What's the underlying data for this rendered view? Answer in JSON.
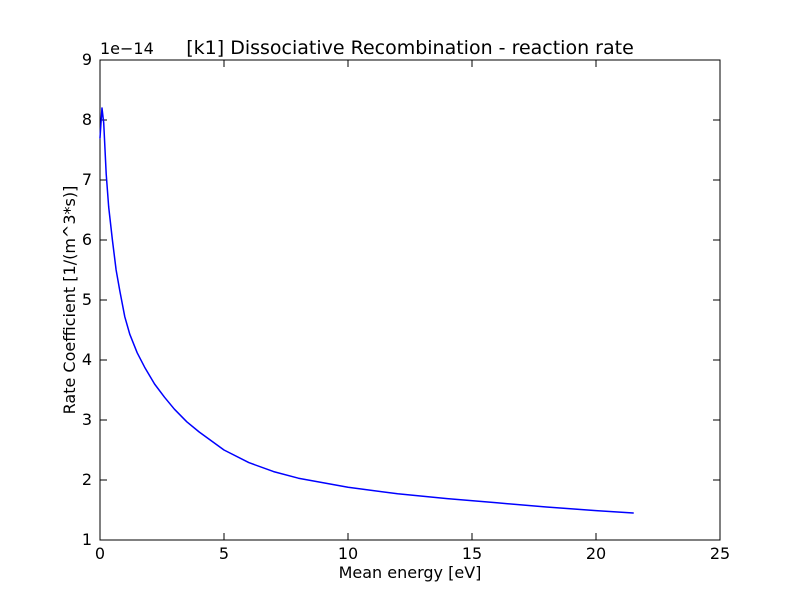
{
  "chart_data": {
    "type": "line",
    "title": "[k1] Dissociative Recombination - reaction rate",
    "xlabel": "Mean energy [eV]",
    "ylabel": "Rate Coefficient [1/(m^3*s)]",
    "y_offset_label": "1e−14",
    "xlim": [
      0,
      25
    ],
    "ylim": [
      1,
      9
    ],
    "x_ticks": [
      0,
      5,
      10,
      15,
      20,
      25
    ],
    "y_ticks": [
      1,
      2,
      3,
      4,
      5,
      6,
      7,
      8,
      9
    ],
    "x_tick_labels": [
      "0",
      "5",
      "10",
      "15",
      "20",
      "25"
    ],
    "y_tick_labels": [
      "1",
      "2",
      "3",
      "4",
      "5",
      "6",
      "7",
      "8",
      "9"
    ],
    "grid": false,
    "legend": "none",
    "series": [
      {
        "color": "#0000ff",
        "x": [
          0.0,
          0.08,
          0.15,
          0.25,
          0.35,
          0.5,
          0.65,
          0.8,
          1.0,
          1.2,
          1.5,
          1.8,
          2.2,
          2.6,
          3.0,
          3.5,
          4.0,
          5.0,
          6.0,
          7.0,
          8.0,
          10.0,
          12.0,
          14.0,
          16.0,
          18.0,
          20.0,
          21.5
        ],
        "y": [
          7.7,
          8.2,
          7.95,
          7.1,
          6.55,
          6.0,
          5.5,
          5.15,
          4.72,
          4.43,
          4.12,
          3.88,
          3.6,
          3.38,
          3.18,
          2.97,
          2.8,
          2.5,
          2.29,
          2.14,
          2.03,
          1.88,
          1.77,
          1.69,
          1.62,
          1.55,
          1.49,
          1.45
        ]
      }
    ]
  }
}
